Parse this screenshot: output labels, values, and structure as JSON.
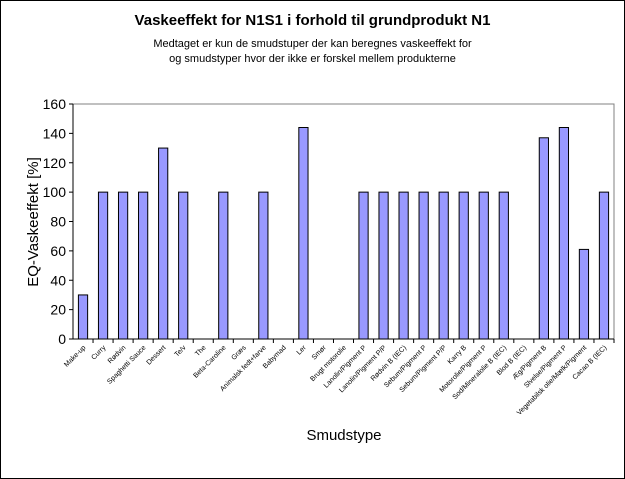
{
  "chart_data": {
    "type": "bar",
    "title": "Vaskeeffekt for N1S1 i forhold til grundprodukt N1",
    "subtitle": [
      "Medtaget er kun de smudstuper der kan beregnes vaskeeffekt for",
      "og smudstyper hvor der ikke er forskel mellem produkterne"
    ],
    "xlabel": "Smudstype",
    "ylabel": "EQ-Vaskeeffekt [%]",
    "ylim": [
      0,
      160
    ],
    "yticks": [
      "0",
      "20",
      "40",
      "60",
      "80",
      "100",
      "120",
      "140",
      "160"
    ],
    "grid": false,
    "legend": "none",
    "colors": {
      "bar": "#9999ff",
      "bar_stroke": "#000000",
      "plot_bg": "#ffffff"
    },
    "categories": [
      "Make-up",
      "Curry",
      "Rødvin",
      "Spaghetti Sauce",
      "Dessert",
      "Te/v",
      "The",
      "Beta-Caroline",
      "Græs",
      "Animalsk fedt+farve",
      "Babymad",
      "Ler",
      "Smør",
      "Brugt motorolie",
      "Lanolin/Pigment P",
      "Lanolin/Pigment P/P",
      "Rødvin B (IEC)",
      "Sebum/Pigment P",
      "Sebum/Pigment P/P",
      "Karry B",
      "Motorolie/Pigment P",
      "Sod/Mineralolie B (IEC)",
      "Blod B (IEC)",
      "Æg/Pigment B",
      "Slvelse/Pigment P",
      "Vegetabilsk olie/Mælk/Pigment",
      "Cacao B (IEC)"
    ],
    "values": [
      30,
      100,
      100,
      100,
      130,
      100,
      null,
      100,
      null,
      100,
      null,
      144,
      null,
      null,
      100,
      100,
      100,
      100,
      100,
      100,
      100,
      100,
      null,
      137,
      144,
      61,
      100
    ]
  }
}
